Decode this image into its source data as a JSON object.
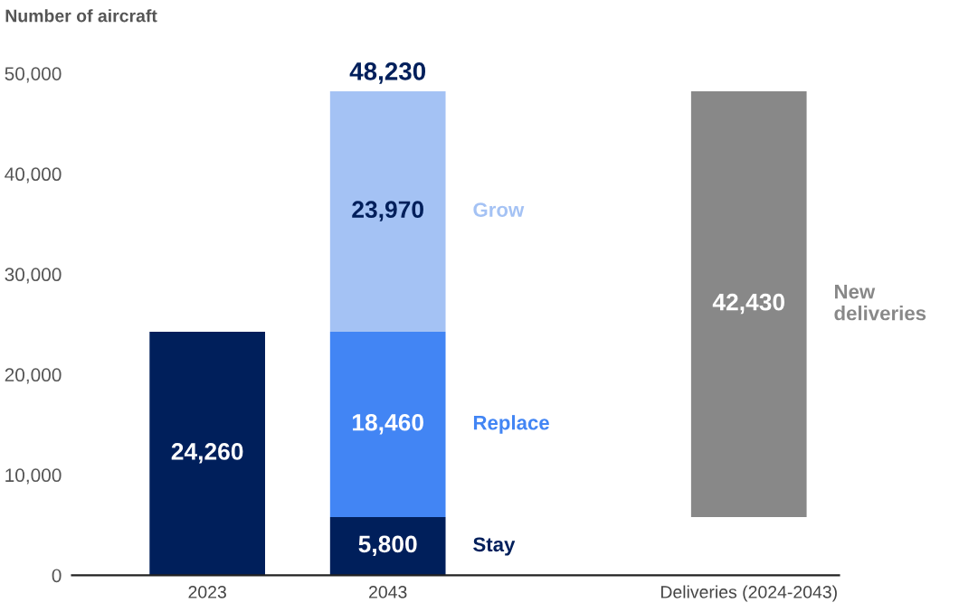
{
  "chart_data": {
    "type": "bar",
    "ylabel": "Number of aircraft",
    "categories": [
      "2023",
      "2043",
      null,
      "Deliveries (2024-2043)"
    ],
    "series": [
      {
        "color": "#001f5b",
        "values": [
          24260,
          null,
          null,
          null
        ],
        "base": [
          0,
          null,
          null,
          null
        ],
        "value_labels": [
          "24,260",
          null,
          null,
          null
        ]
      },
      {
        "name": "Stay",
        "color": "#001f5b",
        "values": [
          null,
          5800,
          null,
          null
        ],
        "base": [
          null,
          0,
          null,
          null
        ],
        "value_labels": [
          null,
          "5,800",
          null,
          null
        ]
      },
      {
        "name": "Replace",
        "color": "#4285f4",
        "values": [
          null,
          18460,
          null,
          null
        ],
        "base": [
          null,
          5800,
          null,
          null
        ],
        "value_labels": [
          null,
          "18,460",
          null,
          null
        ]
      },
      {
        "name": "Grow",
        "color": "#a4c2f4",
        "values": [
          null,
          23970,
          null,
          null
        ],
        "base": [
          null,
          24260,
          null,
          null
        ],
        "value_labels": [
          null,
          "23,970",
          null,
          null
        ]
      },
      {
        "name": "New deliveries",
        "color": "#888888",
        "values": [
          null,
          null,
          null,
          42430
        ],
        "base": [
          null,
          null,
          null,
          5800
        ],
        "value_labels": [
          null,
          null,
          null,
          "42,430"
        ]
      }
    ],
    "totals": [
      null,
      "48,230",
      null,
      null
    ],
    "ylim": [
      0,
      50000
    ],
    "yticks": [
      {
        "value": 0,
        "label": "0"
      },
      {
        "value": 10000,
        "label": "10,000"
      },
      {
        "value": 20000,
        "label": "20,000"
      },
      {
        "value": 30000,
        "label": "30,000"
      },
      {
        "value": 40000,
        "label": "40,000"
      },
      {
        "value": 50000,
        "label": "50,000"
      }
    ],
    "grid": false,
    "legend": false
  }
}
